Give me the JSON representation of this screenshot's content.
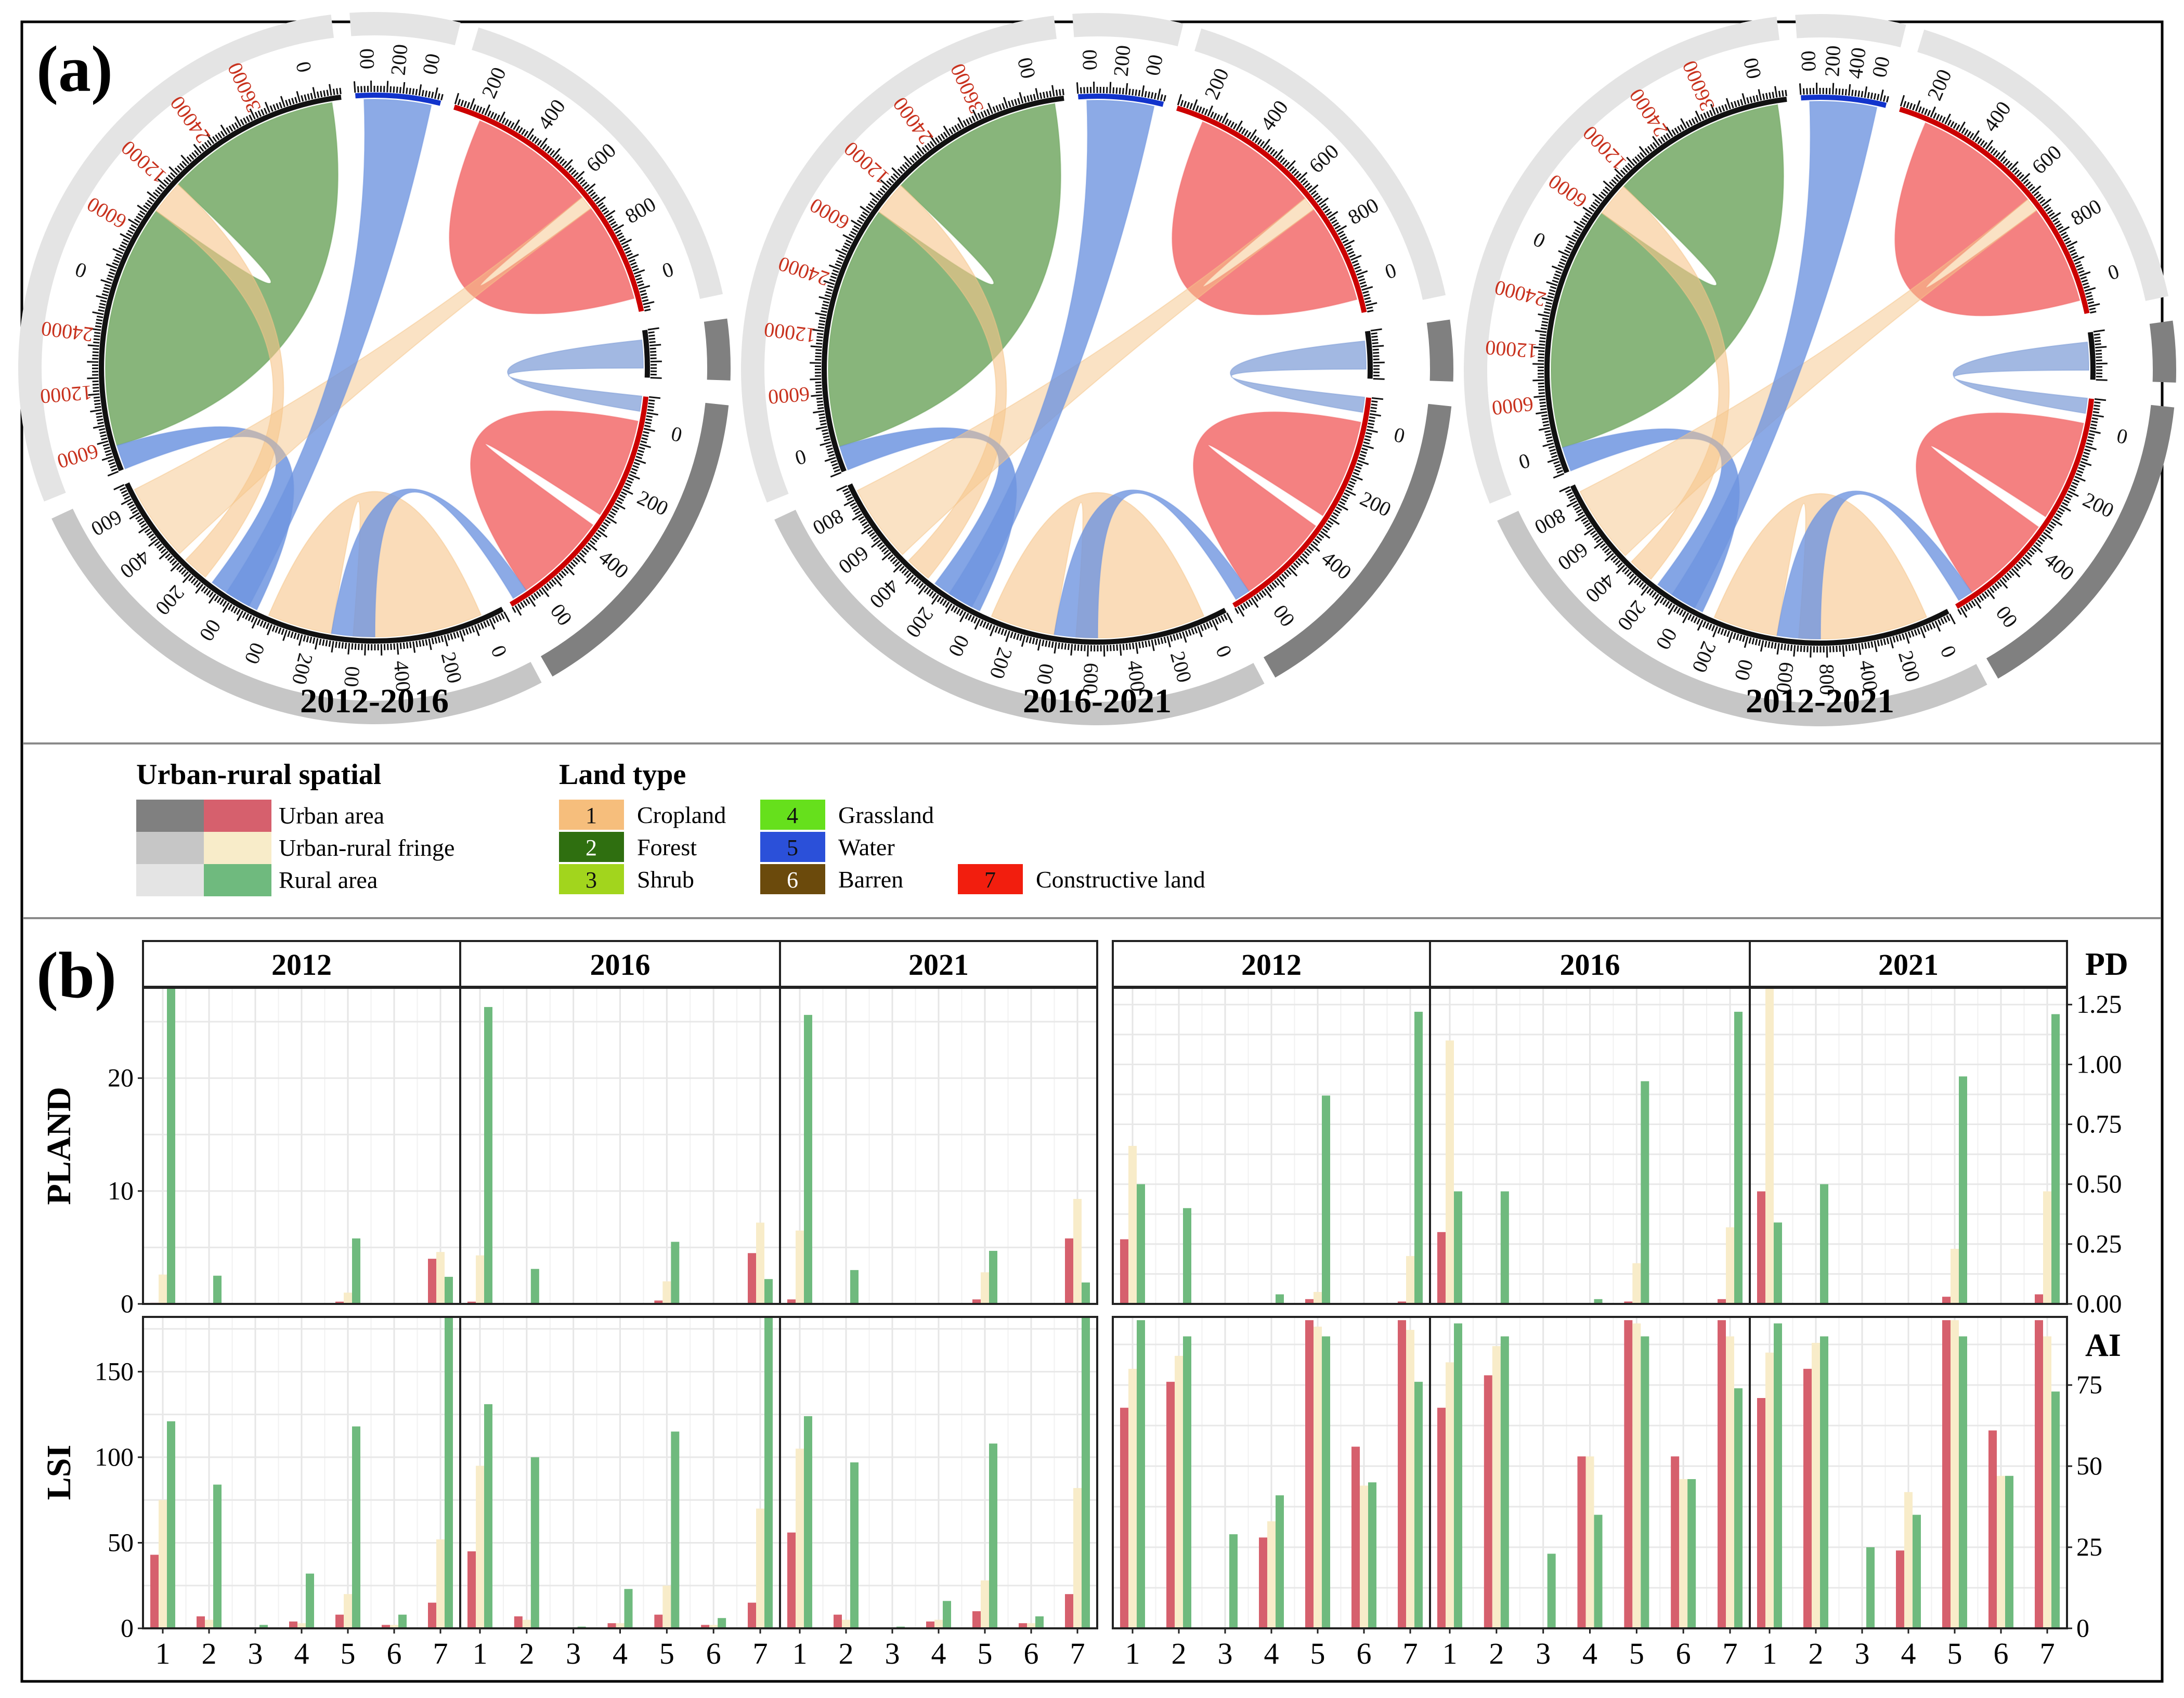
{
  "panel_a": {
    "label": "(a)",
    "diagrams": [
      {
        "title": "2012-2016",
        "scales": {
          "rural": [
            "6000",
            "12000",
            "24000",
            "0",
            "6000",
            "12000",
            "24000",
            "36000",
            "0"
          ],
          "water": [
            "00",
            "200",
            "00"
          ],
          "constr": [
            "200",
            "400",
            "600",
            "800",
            "0"
          ],
          "urban": [
            "0",
            "200",
            "400",
            "00"
          ],
          "bottom": [
            "0",
            "200",
            "400",
            "00",
            "200",
            "00",
            "00",
            "200",
            "400",
            "600"
          ]
        }
      },
      {
        "title": "2016-2021",
        "scales": {
          "rural": [
            "0",
            "6000",
            "12000",
            "24000",
            "6000",
            "12000",
            "24000",
            "36000",
            "00"
          ],
          "water": [
            "00",
            "200",
            "00"
          ],
          "constr": [
            "200",
            "400",
            "600",
            "800",
            "0"
          ],
          "urban": [
            "0",
            "200",
            "400",
            "00"
          ],
          "bottom": [
            "0",
            "200",
            "400",
            "600",
            "00",
            "200",
            "00",
            "200",
            "400",
            "600",
            "800"
          ]
        }
      },
      {
        "title": "2012-2021",
        "scales": {
          "rural": [
            "0",
            "6000",
            "12000",
            "24000",
            "0",
            "6000",
            "12000",
            "24000",
            "36000",
            "00"
          ],
          "water": [
            "00",
            "200",
            "400",
            "00"
          ],
          "constr": [
            "200",
            "400",
            "600",
            "800",
            "0"
          ],
          "urban": [
            "0",
            "200",
            "400",
            "00"
          ],
          "bottom": [
            "0",
            "200",
            "400",
            "800",
            "600",
            "00",
            "200",
            "00",
            "200",
            "400",
            "600",
            "800"
          ]
        }
      }
    ]
  },
  "legend": {
    "spatial_title": "Urban-rural spatial",
    "spatial_items": [
      {
        "label": "Urban area",
        "grey": "#808080",
        "color": "#d6606d"
      },
      {
        "label": "Urban-rural fringe",
        "grey": "#c6c6c6",
        "color": "#f8ecc9"
      },
      {
        "label": "Rural area",
        "grey": "#e4e4e4",
        "color": "#6fba7e"
      }
    ],
    "land_title": "Land type",
    "land_items": [
      {
        "num": "1",
        "label": "Cropland",
        "color": "#f6be7c"
      },
      {
        "num": "2",
        "label": "Forest",
        "color": "#2f6f10"
      },
      {
        "num": "3",
        "label": "Shrub",
        "color": "#a2d51d"
      },
      {
        "num": "4",
        "label": "Grassland",
        "color": "#66e01c"
      },
      {
        "num": "5",
        "label": "Water",
        "color": "#2b50d9"
      },
      {
        "num": "6",
        "label": "Barren",
        "color": "#6b4a0c"
      },
      {
        "num": "7",
        "label": "Constructive land",
        "color": "#f21e0e"
      }
    ]
  },
  "panel_b": {
    "label": "(b)"
  },
  "chart_data": [
    {
      "type": "bar",
      "metric": "PLAND",
      "year": "2012",
      "ylabel": "PLAND",
      "ylim": [
        0,
        28
      ],
      "categories": [
        "1",
        "2",
        "3",
        "4",
        "5",
        "6",
        "7"
      ],
      "series": [
        {
          "name": "Urban area",
          "values": [
            0.1,
            0,
            0,
            0,
            0.2,
            0,
            4.0
          ]
        },
        {
          "name": "Urban-rural fringe",
          "values": [
            2.6,
            0,
            0,
            0,
            1.0,
            0,
            4.6
          ]
        },
        {
          "name": "Rural area",
          "values": [
            28,
            2.5,
            0,
            0,
            5.8,
            0,
            2.4
          ]
        }
      ]
    },
    {
      "type": "bar",
      "metric": "PLAND",
      "year": "2016",
      "ylim": [
        0,
        28
      ],
      "categories": [
        "1",
        "2",
        "3",
        "4",
        "5",
        "6",
        "7"
      ],
      "series": [
        {
          "name": "Urban area",
          "values": [
            0.2,
            0,
            0,
            0,
            0.3,
            0,
            4.5
          ]
        },
        {
          "name": "Urban-rural fringe",
          "values": [
            4.3,
            0,
            0,
            0,
            2.0,
            0,
            7.2
          ]
        },
        {
          "name": "Rural area",
          "values": [
            26.3,
            3.1,
            0,
            0,
            5.5,
            0,
            2.2
          ]
        }
      ]
    },
    {
      "type": "bar",
      "metric": "PLAND",
      "year": "2021",
      "ylim": [
        0,
        28
      ],
      "categories": [
        "1",
        "2",
        "3",
        "4",
        "5",
        "6",
        "7"
      ],
      "series": [
        {
          "name": "Urban area",
          "values": [
            0.4,
            0,
            0,
            0,
            0.4,
            0,
            5.8
          ]
        },
        {
          "name": "Urban-rural fringe",
          "values": [
            6.5,
            0,
            0,
            0,
            2.8,
            0,
            9.3
          ]
        },
        {
          "name": "Rural area",
          "values": [
            25.6,
            3.0,
            0,
            0,
            4.7,
            0,
            1.9
          ]
        }
      ]
    },
    {
      "type": "bar",
      "metric": "PD",
      "year": "2012",
      "ylabel": "PD",
      "ylim": [
        0,
        1.32
      ],
      "categories": [
        "1",
        "2",
        "3",
        "4",
        "5",
        "6",
        "7"
      ],
      "series": [
        {
          "name": "Urban area",
          "values": [
            0.27,
            0,
            0,
            0,
            0.02,
            0,
            0.01
          ]
        },
        {
          "name": "Urban-rural fringe",
          "values": [
            0.66,
            0,
            0,
            0,
            0.05,
            0,
            0.2
          ]
        },
        {
          "name": "Rural area",
          "values": [
            0.5,
            0.4,
            0,
            0.04,
            0.87,
            0,
            1.22
          ]
        }
      ]
    },
    {
      "type": "bar",
      "metric": "PD",
      "year": "2016",
      "ylim": [
        0,
        1.32
      ],
      "categories": [
        "1",
        "2",
        "3",
        "4",
        "5",
        "6",
        "7"
      ],
      "series": [
        {
          "name": "Urban area",
          "values": [
            0.3,
            0,
            0,
            0,
            0.01,
            0,
            0.02
          ]
        },
        {
          "name": "Urban-rural fringe",
          "values": [
            1.1,
            0,
            0,
            0,
            0.17,
            0,
            0.32
          ]
        },
        {
          "name": "Rural area",
          "values": [
            0.47,
            0.47,
            0,
            0.02,
            0.93,
            0,
            1.22
          ]
        }
      ]
    },
    {
      "type": "bar",
      "metric": "PD",
      "year": "2021",
      "ylim": [
        0,
        1.32
      ],
      "categories": [
        "1",
        "2",
        "3",
        "4",
        "5",
        "6",
        "7"
      ],
      "series": [
        {
          "name": "Urban area",
          "values": [
            0.47,
            0,
            0,
            0,
            0.03,
            0,
            0.04
          ]
        },
        {
          "name": "Urban-rural fringe",
          "values": [
            1.32,
            0,
            0,
            0,
            0.23,
            0,
            0.47
          ]
        },
        {
          "name": "Rural area",
          "values": [
            0.34,
            0.5,
            0,
            0,
            0.95,
            0,
            1.21
          ]
        }
      ]
    },
    {
      "type": "bar",
      "metric": "LSI",
      "year": "2012",
      "ylabel": "LSI",
      "ylim": [
        0,
        182
      ],
      "categories": [
        "1",
        "2",
        "3",
        "4",
        "5",
        "6",
        "7"
      ],
      "series": [
        {
          "name": "Urban area",
          "values": [
            43,
            7,
            0,
            4,
            8,
            2,
            15
          ]
        },
        {
          "name": "Urban-rural fringe",
          "values": [
            75,
            5,
            0,
            3,
            20,
            2,
            52
          ]
        },
        {
          "name": "Rural area",
          "values": [
            121,
            84,
            2,
            32,
            118,
            8,
            182
          ]
        }
      ]
    },
    {
      "type": "bar",
      "metric": "LSI",
      "year": "2016",
      "ylim": [
        0,
        182
      ],
      "categories": [
        "1",
        "2",
        "3",
        "4",
        "5",
        "6",
        "7"
      ],
      "series": [
        {
          "name": "Urban area",
          "values": [
            45,
            7,
            0,
            3,
            8,
            2,
            15
          ]
        },
        {
          "name": "Urban-rural fringe",
          "values": [
            95,
            5,
            0,
            3,
            25,
            2,
            70
          ]
        },
        {
          "name": "Rural area",
          "values": [
            131,
            100,
            1,
            23,
            115,
            6,
            182
          ]
        }
      ]
    },
    {
      "type": "bar",
      "metric": "LSI",
      "year": "2021",
      "ylim": [
        0,
        182
      ],
      "categories": [
        "1",
        "2",
        "3",
        "4",
        "5",
        "6",
        "7"
      ],
      "series": [
        {
          "name": "Urban area",
          "values": [
            56,
            8,
            0,
            4,
            10,
            3,
            20
          ]
        },
        {
          "name": "Urban-rural fringe",
          "values": [
            105,
            5,
            0,
            5,
            28,
            3,
            82
          ]
        },
        {
          "name": "Rural area",
          "values": [
            124,
            97,
            1,
            16,
            108,
            7,
            182
          ]
        }
      ]
    },
    {
      "type": "bar",
      "metric": "AI",
      "year": "2012",
      "ylabel": "AI",
      "ylim": [
        0,
        96
      ],
      "categories": [
        "1",
        "2",
        "3",
        "4",
        "5",
        "6",
        "7"
      ],
      "series": [
        {
          "name": "Urban area",
          "values": [
            68,
            76,
            0,
            28,
            95,
            56,
            95
          ]
        },
        {
          "name": "Urban-rural fringe",
          "values": [
            80,
            84,
            0,
            33,
            93,
            44,
            92
          ]
        },
        {
          "name": "Rural area",
          "values": [
            95,
            90,
            29,
            41,
            90,
            45,
            76
          ]
        }
      ]
    },
    {
      "type": "bar",
      "metric": "AI",
      "year": "2016",
      "ylim": [
        0,
        96
      ],
      "categories": [
        "1",
        "2",
        "3",
        "4",
        "5",
        "6",
        "7"
      ],
      "series": [
        {
          "name": "Urban area",
          "values": [
            68,
            78,
            0,
            53,
            95,
            53,
            95
          ]
        },
        {
          "name": "Urban-rural fringe",
          "values": [
            82,
            87,
            0,
            53,
            94,
            46,
            90
          ]
        },
        {
          "name": "Rural area",
          "values": [
            94,
            90,
            23,
            35,
            90,
            46,
            74
          ]
        }
      ]
    },
    {
      "type": "bar",
      "metric": "AI",
      "year": "2021",
      "ylim": [
        0,
        96
      ],
      "categories": [
        "1",
        "2",
        "3",
        "4",
        "5",
        "6",
        "7"
      ],
      "series": [
        {
          "name": "Urban area",
          "values": [
            71,
            80,
            0,
            24,
            95,
            61,
            95
          ]
        },
        {
          "name": "Urban-rural fringe",
          "values": [
            85,
            88,
            0,
            42,
            95,
            47,
            90
          ]
        },
        {
          "name": "Rural area",
          "values": [
            94,
            90,
            25,
            35,
            90,
            47,
            73
          ]
        }
      ]
    }
  ],
  "axes": {
    "pland_ticks": [
      "0",
      "10",
      "20"
    ],
    "lsi_ticks": [
      "0",
      "50",
      "100",
      "150"
    ],
    "pd_ticks": [
      "0.00",
      "0.25",
      "0.50",
      "0.75",
      "1.00",
      "1.25"
    ],
    "ai_ticks": [
      "0",
      "25",
      "50",
      "75"
    ]
  }
}
